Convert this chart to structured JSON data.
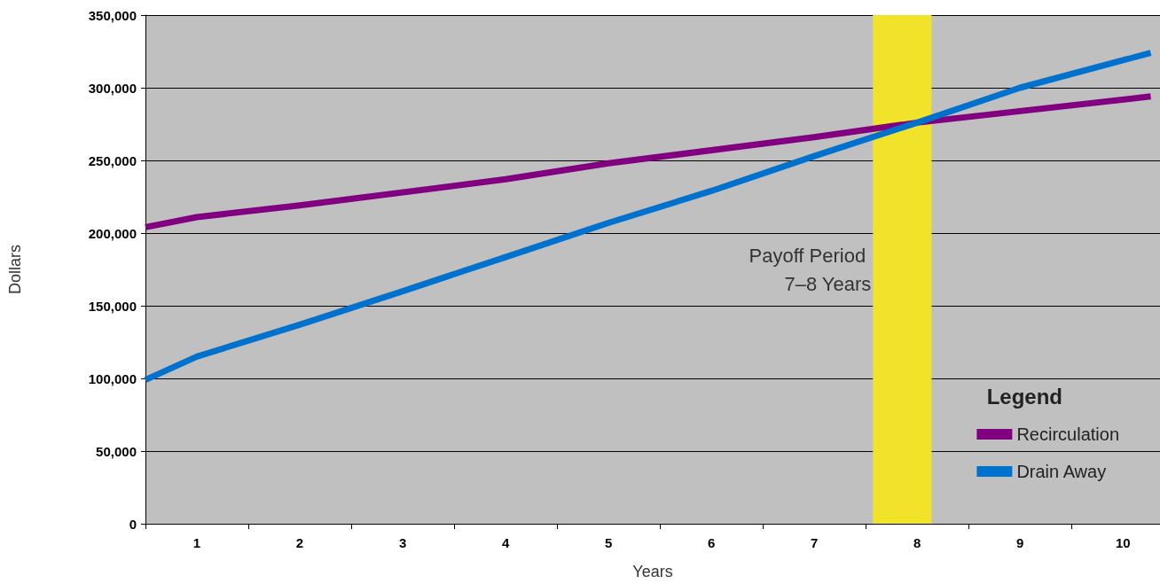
{
  "chart_data": {
    "type": "line",
    "xlabel": "Years",
    "ylabel": "Dollars",
    "legend_title": "Legend",
    "series": [
      {
        "name": "Recirculation",
        "color": "#800080",
        "x": [
          0.5,
          1,
          2,
          4,
          5,
          7,
          8,
          10.27
        ],
        "values": [
          204000,
          211000,
          219000,
          237000,
          248000,
          266000,
          276000,
          294000
        ]
      },
      {
        "name": "Drain Away",
        "color": "#0072ce",
        "x": [
          0.5,
          1,
          2,
          3,
          4,
          5,
          6,
          7,
          8,
          9,
          10.27
        ],
        "values": [
          99000,
          115000,
          137000,
          160000,
          183500,
          207000,
          229000,
          253000,
          276000,
          300000,
          324000
        ]
      }
    ],
    "xlim": [
      0.5,
      10.36
    ],
    "xticks": [
      1,
      2,
      3,
      4,
      5,
      6,
      7,
      8,
      9,
      10
    ],
    "ylim": [
      0,
      350000
    ],
    "yticks": [
      0,
      {
        "value": 50000,
        "label": "50,000"
      },
      {
        "value": 100000,
        "label": "100,000"
      },
      {
        "value": 150000,
        "label": "150,000"
      },
      {
        "value": 200000,
        "label": "200,000"
      },
      {
        "value": 250000,
        "label": "250,000"
      },
      {
        "value": 300000,
        "label": "300,000"
      },
      {
        "value": 350000,
        "label": "350,000"
      }
    ],
    "bands": [
      {
        "axis": "x",
        "from": 7.57,
        "to": 8.14,
        "label": "Payoff Period 7–8 Years",
        "color": "#f0e32a"
      }
    ],
    "grid": "y",
    "legend": "bottom right",
    "marker": "none",
    "line_style": "solid"
  }
}
